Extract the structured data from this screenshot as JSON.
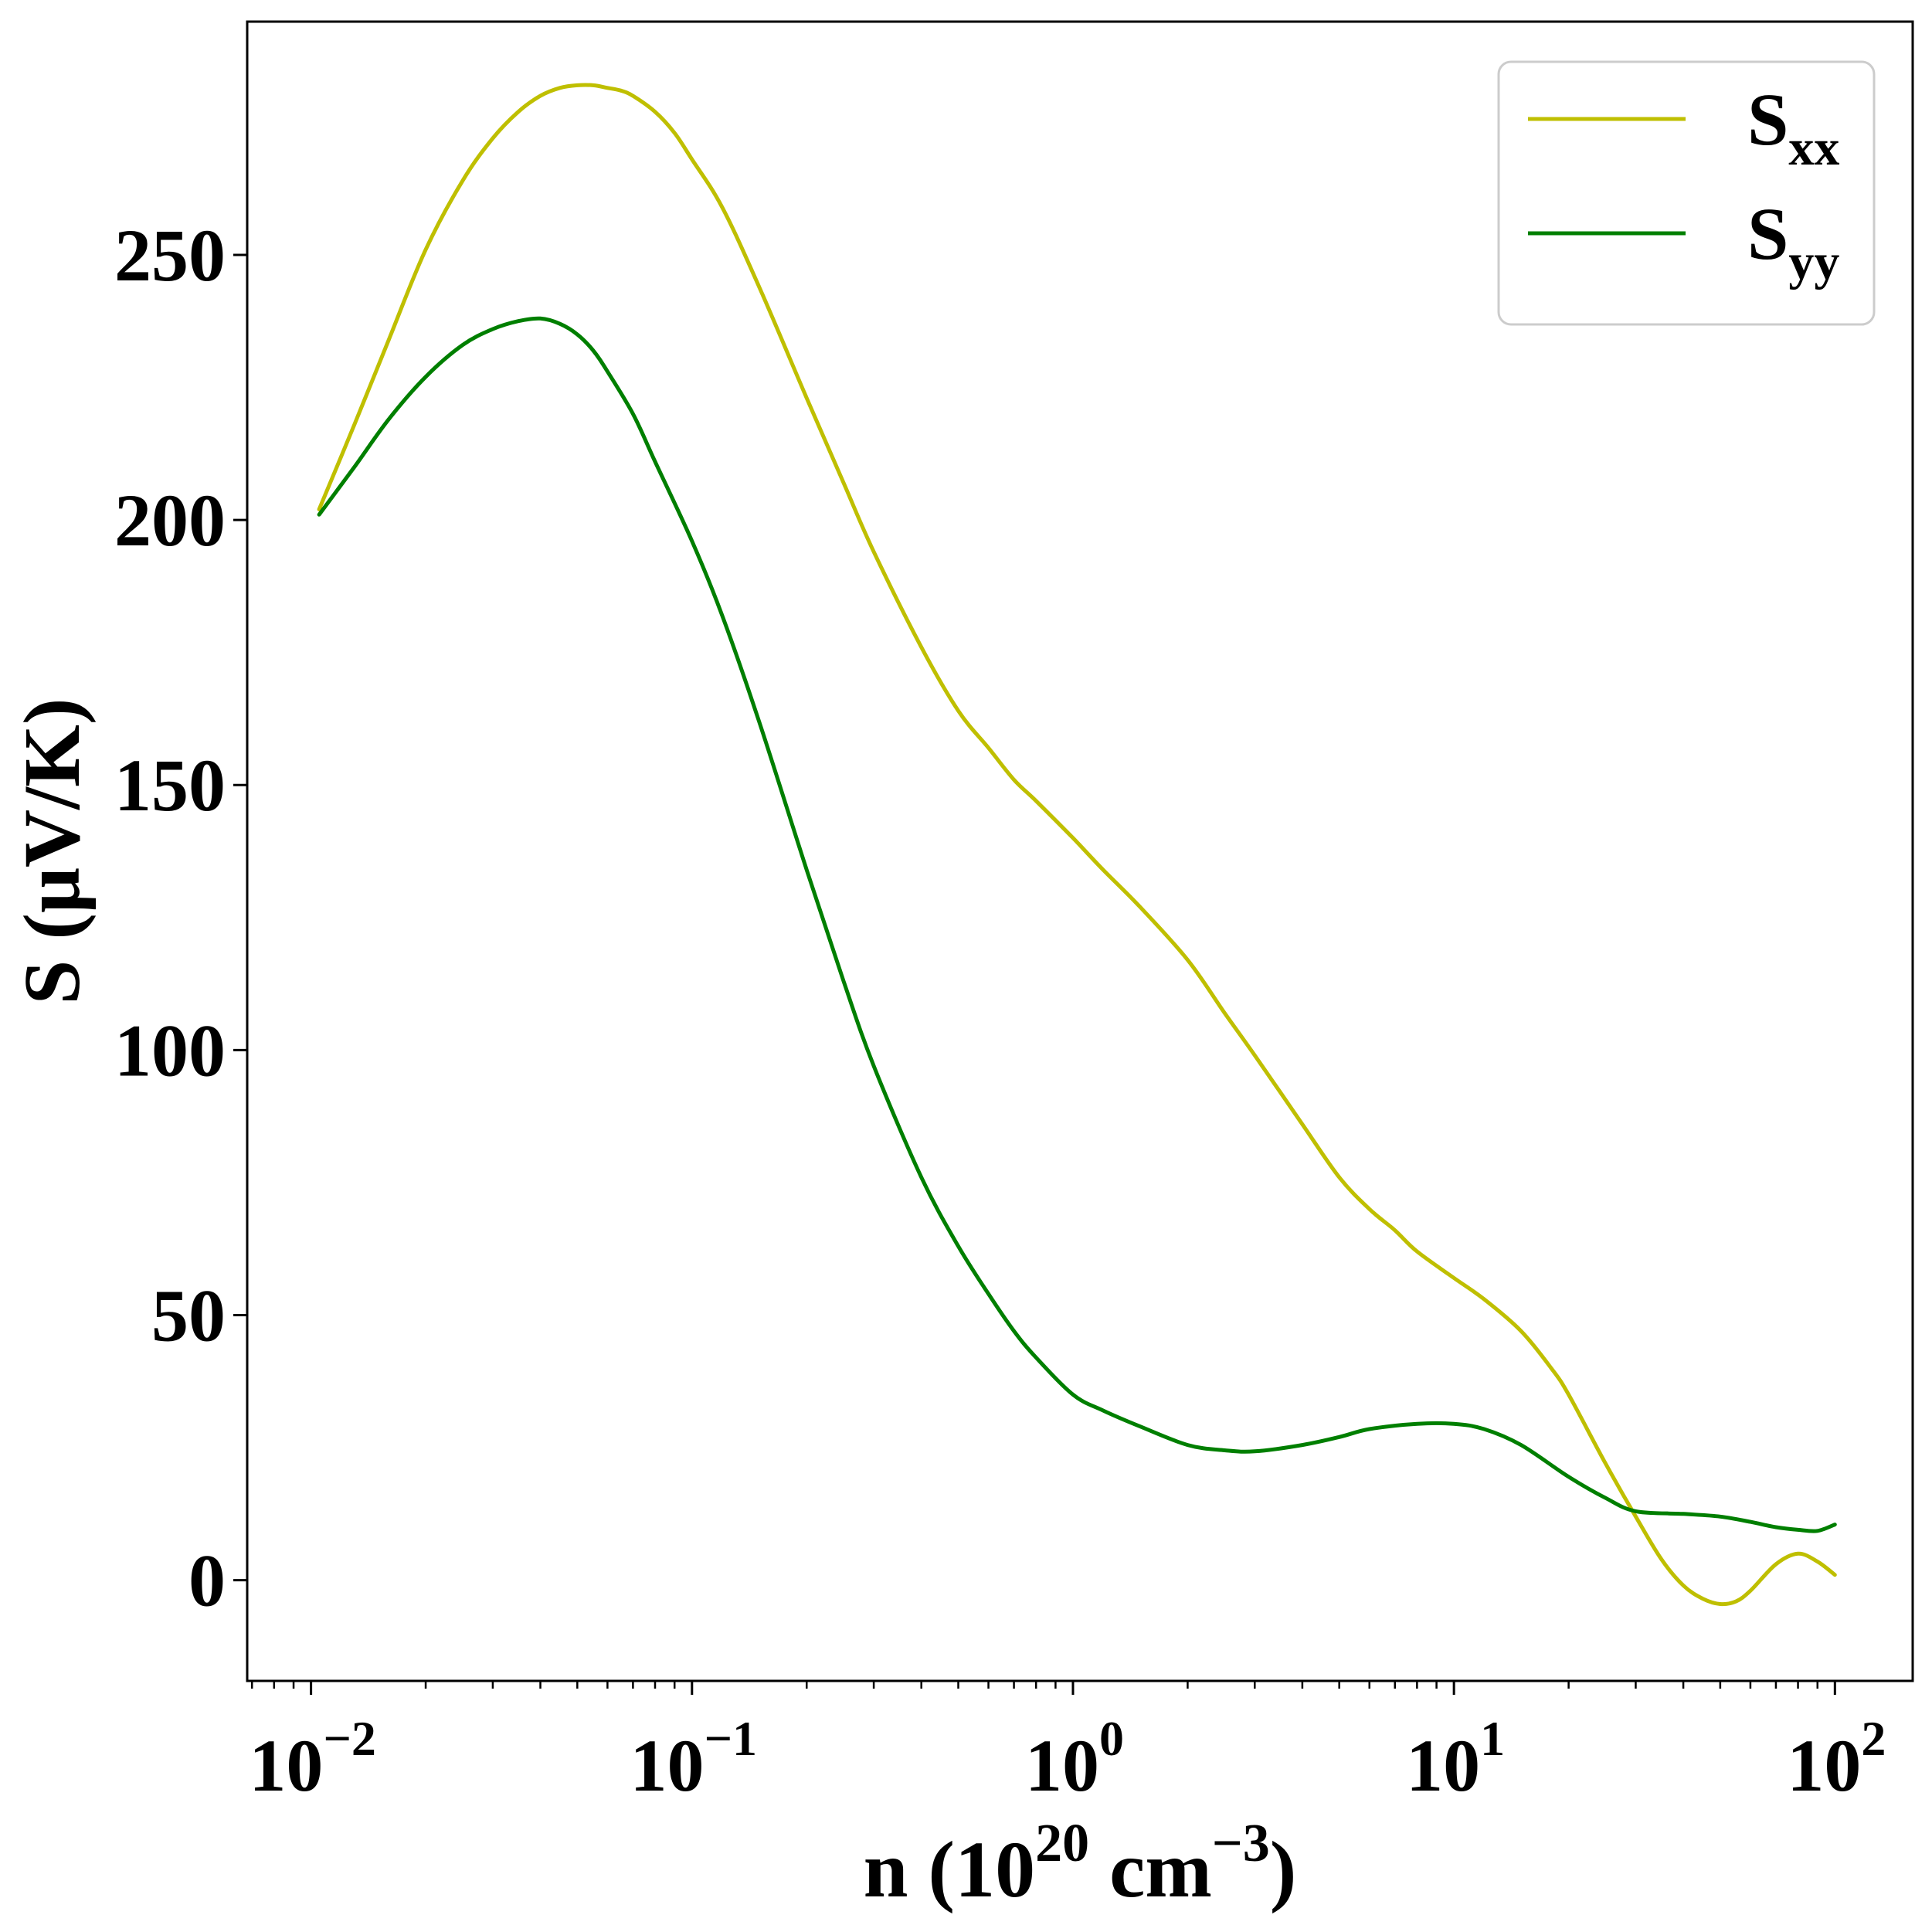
{
  "chart_data": {
    "type": "line",
    "title": "",
    "xlabel": {
      "prefix": "n (10",
      "exp1": "20",
      "mid": " cm",
      "exp2": "−3",
      "suffix": ")"
    },
    "ylabel": "S (μV/K)",
    "xscale": "log",
    "xlim": [
      0.0068,
      160
    ],
    "ylim": [
      -19,
      294
    ],
    "x_ticks": [
      {
        "value": 0.01,
        "base": "10",
        "exp": "−2"
      },
      {
        "value": 0.1,
        "base": "10",
        "exp": "−1"
      },
      {
        "value": 1,
        "base": "10",
        "exp": "0"
      },
      {
        "value": 10,
        "base": "10",
        "exp": "1"
      },
      {
        "value": 100,
        "base": "10",
        "exp": "2"
      }
    ],
    "y_ticks": [
      0,
      50,
      100,
      150,
      200,
      250
    ],
    "grid": false,
    "legend": "top-right",
    "series": [
      {
        "name": "S",
        "subscript": "xx",
        "color": "#bfbf00",
        "x": [
          0.0105,
          0.013,
          0.016,
          0.02,
          0.025,
          0.03,
          0.035,
          0.04,
          0.045,
          0.05,
          0.055,
          0.06,
          0.065,
          0.07,
          0.08,
          0.09,
          0.1,
          0.12,
          0.15,
          0.2,
          0.25,
          0.3,
          0.4,
          0.5,
          0.6,
          0.7,
          0.8,
          1.0,
          1.2,
          1.5,
          2.0,
          2.5,
          3.0,
          4.0,
          5.0,
          6.0,
          7.0,
          8.0,
          10,
          12,
          15,
          18,
          20,
          25,
          30,
          35,
          40,
          45,
          50,
          55,
          60,
          70,
          80,
          90,
          100
        ],
        "y": [
          202,
          218,
          234,
          251,
          264,
          272,
          277,
          280,
          281.5,
          282,
          282,
          281.5,
          281,
          280,
          277,
          273,
          268,
          259,
          244,
          223,
          207,
          194,
          176,
          164,
          157,
          151,
          147,
          140,
          134,
          127,
          117,
          107,
          99,
          86,
          76,
          70,
          66,
          62,
          57,
          53,
          47,
          40,
          35,
          22,
          12,
          4,
          -1,
          -3.5,
          -4.5,
          -4,
          -2,
          3,
          5,
          3.5,
          1
        ]
      },
      {
        "name": "S",
        "subscript": "yy",
        "color": "#007f00",
        "x": [
          0.0105,
          0.013,
          0.016,
          0.02,
          0.025,
          0.03,
          0.035,
          0.04,
          0.045,
          0.05,
          0.055,
          0.06,
          0.07,
          0.08,
          0.1,
          0.12,
          0.15,
          0.2,
          0.25,
          0.3,
          0.4,
          0.5,
          0.6,
          0.7,
          0.8,
          1.0,
          1.2,
          1.5,
          2.0,
          2.5,
          3.0,
          4.0,
          5.0,
          6.0,
          8.0,
          10,
          12,
          15,
          20,
          25,
          30,
          40,
          50,
          60,
          70,
          80,
          90,
          100
        ],
        "y": [
          201,
          210,
          219,
          227,
          233,
          236,
          237.5,
          238,
          237,
          235,
          232,
          228,
          220,
          211,
          196,
          182,
          162,
          134,
          113,
          97,
          76,
          63,
          54,
          47,
          42,
          35,
          32,
          29,
          25.5,
          24.5,
          24.3,
          25.5,
          27,
          28.5,
          29.5,
          29.5,
          28.5,
          25.5,
          19.5,
          15.5,
          13,
          12.5,
          12,
          11,
          10,
          9.5,
          9.3,
          10.5
        ]
      }
    ]
  }
}
